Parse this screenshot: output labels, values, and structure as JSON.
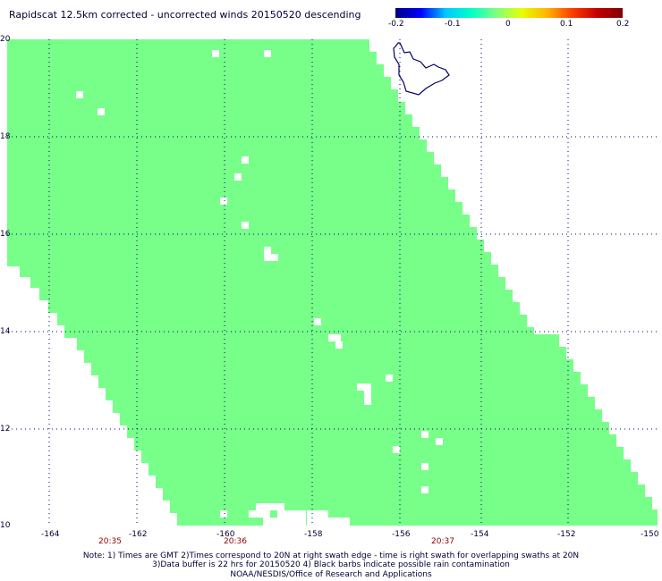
{
  "title": "Rapidscat 12.5km corrected - uncorrected winds 20150520 descending",
  "colorbar": {
    "labels": [
      "-0.2",
      "-0.1",
      "0",
      "0.1",
      "0.2"
    ]
  },
  "axes": {
    "lon_ticks": [
      "-164",
      "-162",
      "-160",
      "-158",
      "-156",
      "-154",
      "-152",
      "-150"
    ],
    "lat_ticks": [
      "20",
      "18",
      "16",
      "14",
      "12",
      "10"
    ],
    "time_labels": [
      "20:35",
      "20:36",
      "20:37"
    ],
    "lon_range": [
      -165,
      -149.5
    ],
    "lat_range": [
      10,
      20
    ]
  },
  "colors": {
    "swath": "#77ff8a",
    "gap": "#ffffff",
    "coast": "#000066",
    "grid": "#000066",
    "time_label": "#8b0000"
  },
  "notes": {
    "line1": "Note: 1) Times are GMT 2)Times correspond to 20N at right swath edge - time is right swath for overlapping swaths at 20N",
    "line2": "3)Data buffer is 22 hrs for 20150520 4) Black barbs indicate possible rain contamination",
    "line3": "NOAA/NESDIS/Office of Research and Applications"
  }
}
